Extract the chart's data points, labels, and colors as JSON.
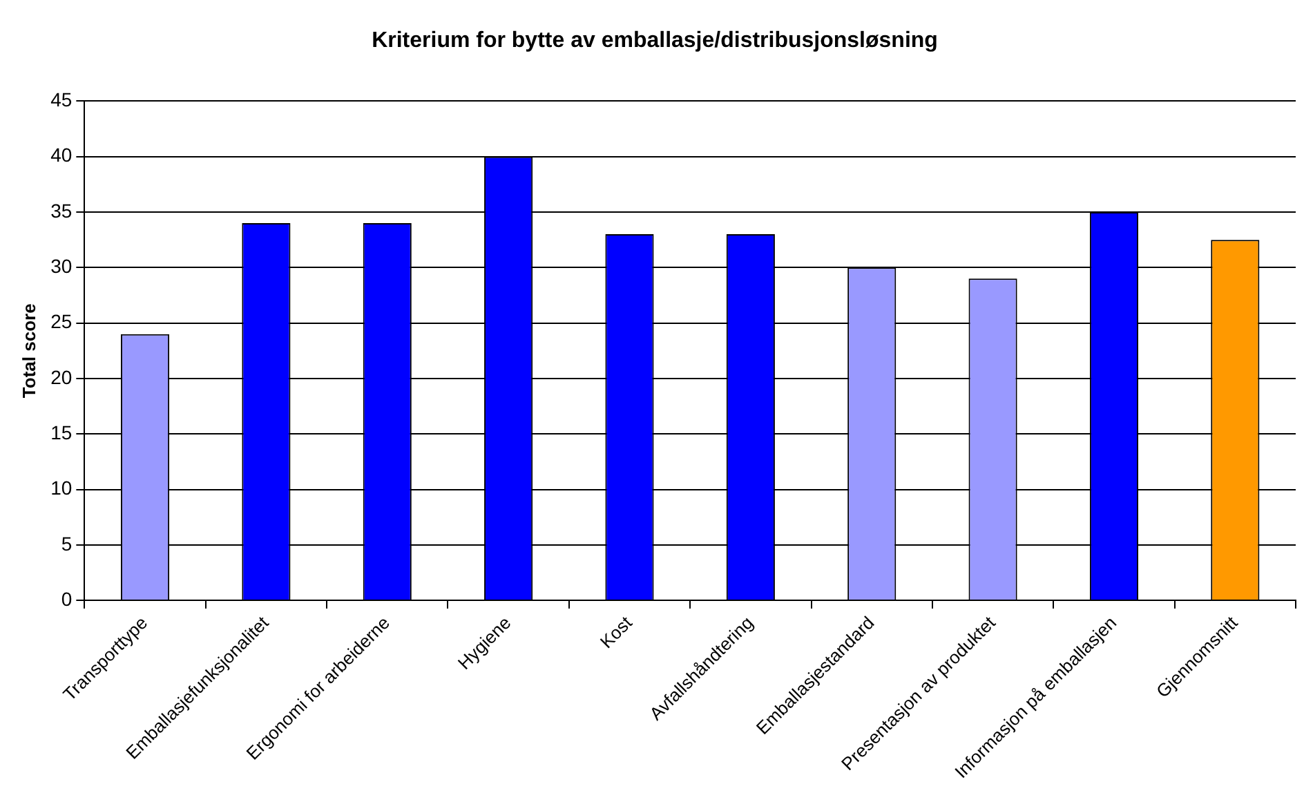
{
  "chart_data": {
    "type": "bar",
    "title": "Kriterium for bytte av emballasje/distribusjonsløsning",
    "ylabel": "Total score",
    "categories": [
      "Transporttype",
      "Emballasjefunksjonalitet",
      "Ergonomi for arbeiderne",
      "Hygiene",
      "Kost",
      "Avfallshåndtering",
      "Emballasjestandard",
      "Presentasjon av produktet",
      "Informasjon på emballasjen",
      "Gjennomsnitt"
    ],
    "values": [
      24,
      34,
      34,
      40,
      33,
      33,
      30,
      29,
      35,
      32.5
    ],
    "colors": [
      "#9999ff",
      "#0000ff",
      "#0000ff",
      "#0000ff",
      "#0000ff",
      "#0000ff",
      "#9999ff",
      "#9999ff",
      "#0000ff",
      "#ff9900"
    ],
    "ylim": [
      0,
      45
    ],
    "yticks": [
      0,
      5,
      10,
      15,
      20,
      25,
      30,
      35,
      40,
      45
    ],
    "grid": "y",
    "legend": false
  }
}
